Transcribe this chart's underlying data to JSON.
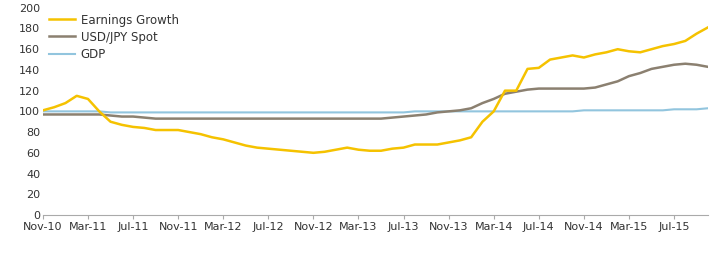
{
  "earnings_growth": {
    "label": "Earnings Growth",
    "color": "#F5C200",
    "linewidth": 1.8,
    "x": [
      0,
      1,
      2,
      3,
      4,
      5,
      6,
      7,
      8,
      9,
      10,
      11,
      12,
      13,
      14,
      15,
      16,
      17,
      18,
      19,
      20,
      21,
      22,
      23,
      24,
      25,
      26,
      27,
      28,
      29,
      30,
      31,
      32,
      33,
      34,
      35,
      36,
      37,
      38,
      39,
      40,
      41,
      42,
      43,
      44,
      45,
      46,
      47,
      48,
      49,
      50,
      51,
      52,
      53,
      54,
      55,
      56,
      57,
      58,
      59
    ],
    "y": [
      101,
      104,
      108,
      115,
      112,
      100,
      90,
      87,
      85,
      84,
      82,
      82,
      82,
      80,
      78,
      75,
      73,
      70,
      67,
      65,
      64,
      63,
      62,
      61,
      60,
      61,
      63,
      65,
      63,
      62,
      62,
      64,
      65,
      68,
      68,
      68,
      70,
      72,
      75,
      90,
      100,
      120,
      120,
      141,
      142,
      150,
      152,
      154,
      152,
      155,
      157,
      160,
      158,
      157,
      160,
      163,
      165,
      168,
      175,
      181
    ]
  },
  "usd_jpy": {
    "label": "USD/JPY Spot",
    "color": "#8B8070",
    "linewidth": 1.8,
    "x": [
      0,
      1,
      2,
      3,
      4,
      5,
      6,
      7,
      8,
      9,
      10,
      11,
      12,
      13,
      14,
      15,
      16,
      17,
      18,
      19,
      20,
      21,
      22,
      23,
      24,
      25,
      26,
      27,
      28,
      29,
      30,
      31,
      32,
      33,
      34,
      35,
      36,
      37,
      38,
      39,
      40,
      41,
      42,
      43,
      44,
      45,
      46,
      47,
      48,
      49,
      50,
      51,
      52,
      53,
      54,
      55,
      56,
      57,
      58,
      59
    ],
    "y": [
      97,
      97,
      97,
      97,
      97,
      97,
      96,
      95,
      95,
      94,
      93,
      93,
      93,
      93,
      93,
      93,
      93,
      93,
      93,
      93,
      93,
      93,
      93,
      93,
      93,
      93,
      93,
      93,
      93,
      93,
      93,
      94,
      95,
      96,
      97,
      99,
      100,
      101,
      103,
      108,
      112,
      117,
      119,
      121,
      122,
      122,
      122,
      122,
      122,
      123,
      126,
      129,
      134,
      137,
      141,
      143,
      145,
      146,
      145,
      143
    ]
  },
  "gdp": {
    "label": "GDP",
    "color": "#92C5DE",
    "linewidth": 1.5,
    "x": [
      0,
      1,
      2,
      3,
      4,
      5,
      6,
      7,
      8,
      9,
      10,
      11,
      12,
      13,
      14,
      15,
      16,
      17,
      18,
      19,
      20,
      21,
      22,
      23,
      24,
      25,
      26,
      27,
      28,
      29,
      30,
      31,
      32,
      33,
      34,
      35,
      36,
      37,
      38,
      39,
      40,
      41,
      42,
      43,
      44,
      45,
      46,
      47,
      48,
      49,
      50,
      51,
      52,
      53,
      54,
      55,
      56,
      57,
      58,
      59
    ],
    "y": [
      100,
      100,
      100,
      100,
      100,
      100,
      99,
      99,
      99,
      99,
      99,
      99,
      99,
      99,
      99,
      99,
      99,
      99,
      99,
      99,
      99,
      99,
      99,
      99,
      99,
      99,
      99,
      99,
      99,
      99,
      99,
      99,
      99,
      100,
      100,
      100,
      100,
      100,
      100,
      100,
      100,
      100,
      100,
      100,
      100,
      100,
      100,
      100,
      101,
      101,
      101,
      101,
      101,
      101,
      101,
      101,
      102,
      102,
      102,
      103
    ]
  },
  "xtick_labels": [
    "Nov-10",
    "Mar-11",
    "Jul-11",
    "Nov-11",
    "Mar-12",
    "Jul-12",
    "Nov-12",
    "Mar-13",
    "Jul-13",
    "Nov-13",
    "Mar-14",
    "Jul-14",
    "Nov-14",
    "Mar-15",
    "Jul-15"
  ],
  "xtick_positions": [
    0,
    4,
    8,
    12,
    16,
    20,
    24,
    28,
    32,
    36,
    40,
    44,
    48,
    52,
    56
  ],
  "ylim": [
    0,
    200
  ],
  "yticks": [
    0,
    20,
    40,
    60,
    80,
    100,
    120,
    140,
    160,
    180,
    200
  ],
  "xlim": [
    0,
    59
  ],
  "background_color": "#ffffff",
  "legend_fontsize": 8.5,
  "tick_fontsize": 8.0,
  "tick_color": "#888888",
  "spine_color": "#aaaaaa"
}
